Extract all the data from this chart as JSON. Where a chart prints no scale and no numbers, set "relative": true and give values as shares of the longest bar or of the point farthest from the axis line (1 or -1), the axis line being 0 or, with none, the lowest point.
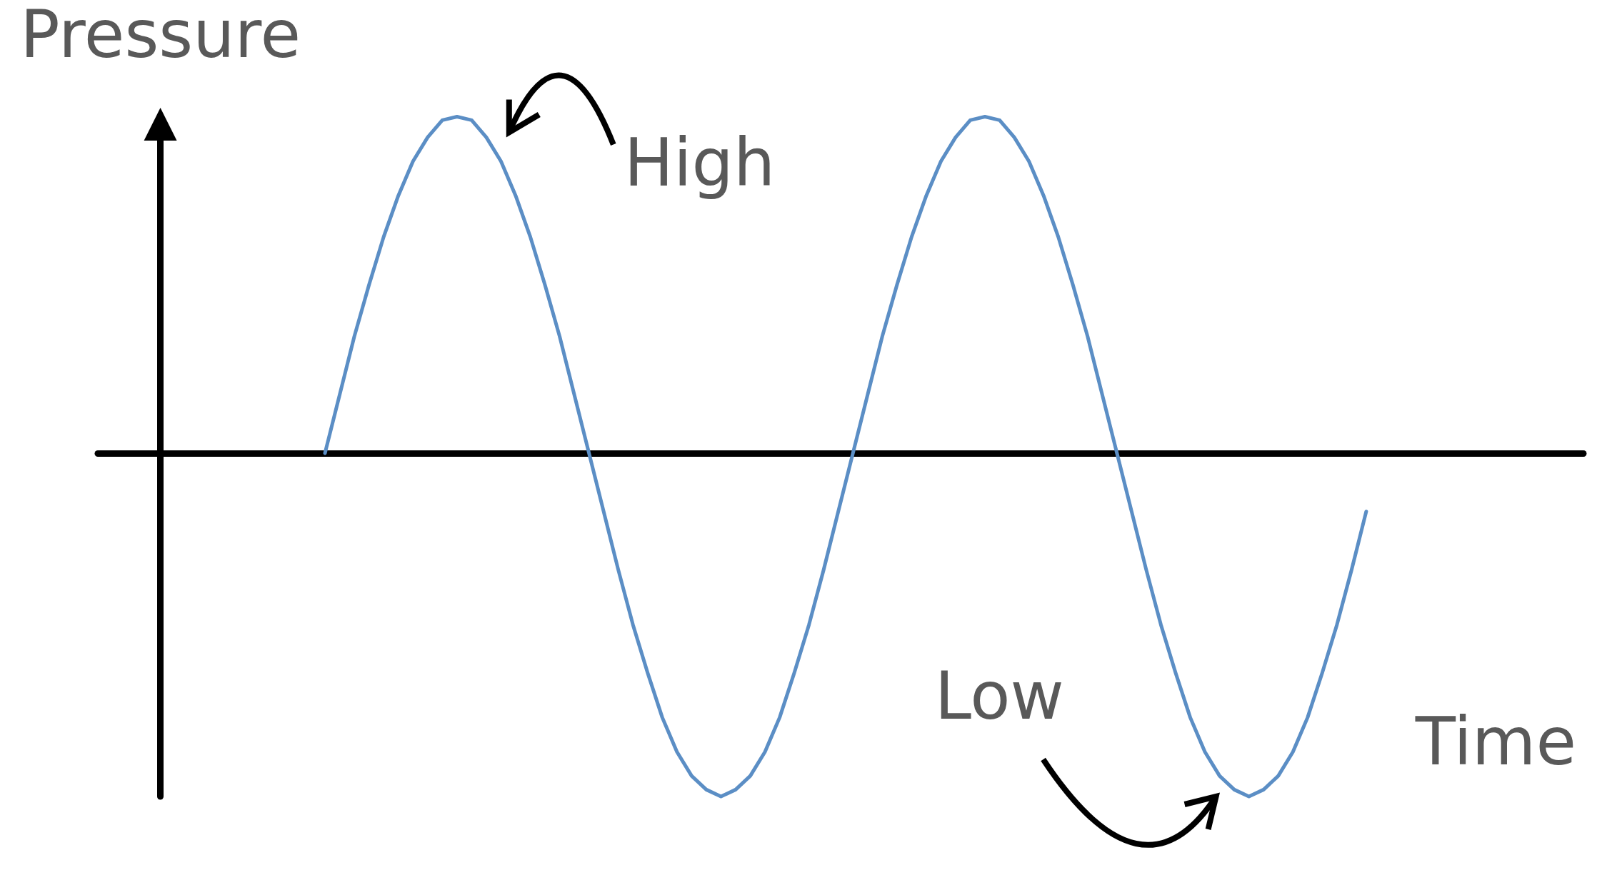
{
  "chart_data": {
    "type": "line",
    "ylabel": "Pressure",
    "xlabel": "Time",
    "relative": true,
    "marker": "none",
    "categories": [
      null,
      null,
      null,
      null,
      null,
      null,
      null,
      null,
      null,
      null,
      null,
      null,
      null,
      null,
      null,
      null,
      null,
      null,
      null,
      null,
      null,
      null,
      null,
      null,
      null,
      null,
      null,
      null,
      null,
      null,
      null,
      null,
      null,
      null,
      null,
      null,
      null,
      null,
      null,
      null,
      null,
      null,
      null,
      null,
      null,
      null,
      null,
      null,
      null,
      null,
      null,
      null,
      null,
      null,
      null,
      null,
      null,
      null,
      null,
      null,
      null,
      null,
      null,
      null,
      null,
      null,
      null,
      null,
      null,
      null,
      null,
      null
    ],
    "series": [
      {
        "color": "#5b8ec5",
        "values": [
          0,
          0.17,
          0.34,
          0.49,
          0.63,
          0.75,
          0.85,
          0.92,
          0.97,
          0.98,
          0.97,
          0.92,
          0.85,
          0.75,
          0.63,
          0.49,
          0.34,
          0.17,
          0,
          -0.17,
          -0.34,
          -0.5,
          -0.64,
          -0.77,
          -0.87,
          -0.94,
          -0.98,
          -1,
          -0.98,
          -0.94,
          -0.87,
          -0.77,
          -0.64,
          -0.5,
          -0.34,
          -0.17,
          0,
          0.17,
          0.34,
          0.49,
          0.63,
          0.75,
          0.85,
          0.92,
          0.97,
          0.98,
          0.97,
          0.92,
          0.85,
          0.75,
          0.63,
          0.49,
          0.34,
          0.17,
          0,
          -0.17,
          -0.34,
          -0.5,
          -0.64,
          -0.77,
          -0.87,
          -0.94,
          -0.98,
          -1,
          -0.98,
          -0.94,
          -0.87,
          -0.77,
          -0.64,
          -0.5,
          -0.34,
          -0.17
        ]
      }
    ],
    "annotations": [
      "High",
      "Low"
    ]
  }
}
